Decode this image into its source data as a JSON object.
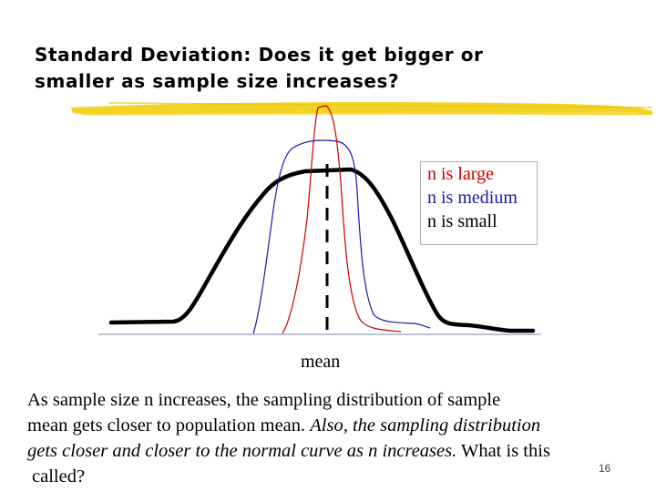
{
  "slide": {
    "title_line1": "Standard Deviation: Does it get bigger or",
    "title_line2": "smaller as sample size increases?",
    "page_number": "16"
  },
  "legend": {
    "items": [
      {
        "label": "n is large",
        "color": "#cc0000"
      },
      {
        "label": "n is medium",
        "color": "#1a1aa8"
      },
      {
        "label": "n is small",
        "color": "#000000"
      }
    ]
  },
  "graph": {
    "mean_label": "mean",
    "accent_underline_color": "#f2d11a"
  },
  "body": {
    "line1": "As sample size n increases, the sampling distribution of sample",
    "line2_plain": "mean gets closer to population mean. ",
    "line2_italic": "Also, the sampling distribution",
    "line3_italic": "gets closer and closer to the normal curve as n increases.",
    "line3_plain": " What is this",
    "line4": "called?"
  }
}
